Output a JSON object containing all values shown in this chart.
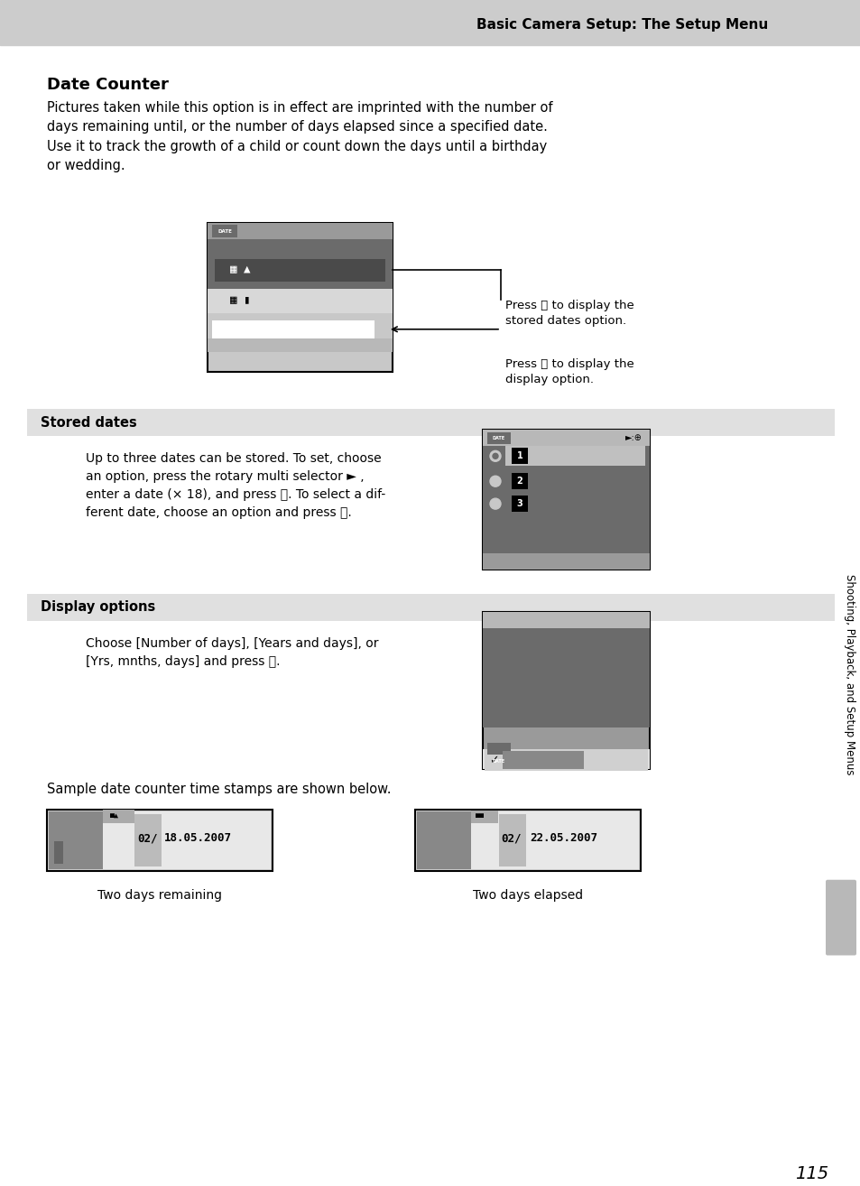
{
  "page_bg": "#ffffff",
  "header_bg": "#cccccc",
  "header_text": "Basic Camera Setup: The Setup Menu",
  "header_fontsize": 11,
  "title": "Date Counter",
  "title_fontsize": 13,
  "body_text1": "Pictures taken while this option is in effect are imprinted with the number of\ndays remaining until, or the number of days elapsed since a specified date.\nUse it to track the growth of a child or count down the days until a birthday\nor wedding.",
  "body_fontsize": 10.5,
  "section1_label": "Stored dates",
  "section1_bg": "#e0e0e0",
  "section1_text": "Up to three dates can be stored. To set, choose\nan option, press the rotary multi selector ► ,\nenter a date (× 18), and press ⒪. To select a dif-\nferent date, choose an option and press ⒪.",
  "section2_label": "Display options",
  "section2_bg": "#e0e0e0",
  "section2_text": "Choose [Number of days], [Years and days], or\n[Yrs, mnths, days] and press ⒪.",
  "sample_text": "Sample date counter time stamps are shown below.",
  "caption1": "Two days remaining",
  "caption2": "Two days elapsed",
  "sidebar_text": "Shooting, Playback, and Setup Menus",
  "page_number": "115",
  "callout1": "Press ⒪ to display the\nstored dates option.",
  "callout2": "Press ⒪ to display the\ndisplay option.",
  "dark_gray": "#6b6b6b",
  "medium_gray": "#9a9a9a",
  "light_gray": "#c8c8c8",
  "white": "#ffffff",
  "black": "#000000"
}
